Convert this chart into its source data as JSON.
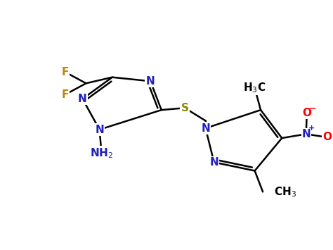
{
  "bg_color": "#ffffff",
  "colors": {
    "N": "#2020bb",
    "F": "#b8860b",
    "S": "#888800",
    "O": "#ff0000",
    "C": "#000000",
    "bond": "#000000"
  },
  "font_size": 11,
  "fig_width": 4.74,
  "fig_height": 3.55,
  "dpi": 100,
  "xlim": [
    0.5,
    8.5
  ],
  "ylim": [
    0.8,
    4.2
  ]
}
